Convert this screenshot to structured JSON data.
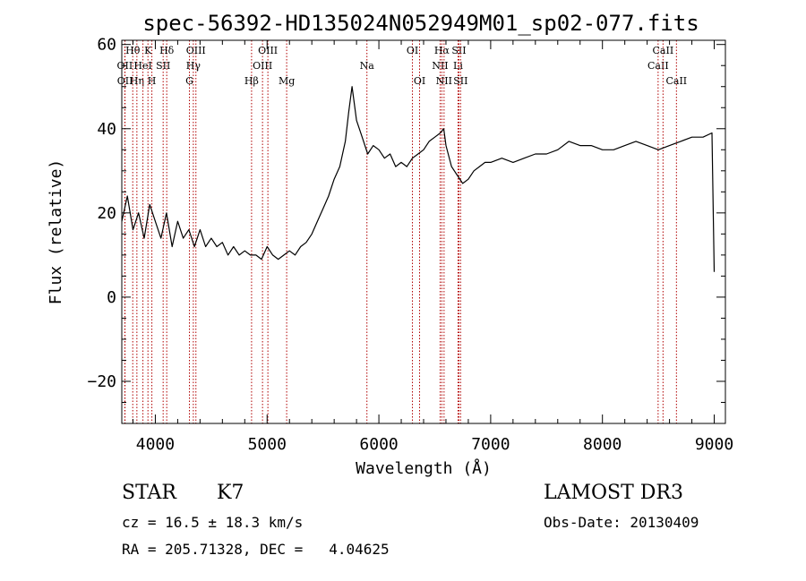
{
  "chart_data": {
    "type": "line",
    "title": "spec-56392-HD135024N052949M01_sp02-077.fits",
    "xlabel": "Wavelength (Å)",
    "ylabel": "Flux (relative)",
    "xlim": [
      3700,
      9100
    ],
    "ylim": [
      -30,
      61
    ],
    "xticks": [
      4000,
      5000,
      6000,
      7000,
      8000,
      9000
    ],
    "yticks": [
      -20,
      0,
      20,
      40,
      60
    ],
    "grid": false,
    "series": [
      {
        "color": "#000000",
        "x": [
          3700,
          3750,
          3800,
          3850,
          3900,
          3950,
          4000,
          4050,
          4100,
          4150,
          4200,
          4250,
          4300,
          4350,
          4400,
          4450,
          4500,
          4550,
          4600,
          4650,
          4700,
          4750,
          4800,
          4850,
          4900,
          4950,
          5000,
          5050,
          5100,
          5150,
          5200,
          5250,
          5300,
          5350,
          5400,
          5450,
          5500,
          5550,
          5600,
          5650,
          5700,
          5730,
          5760,
          5780,
          5800,
          5850,
          5900,
          5950,
          6000,
          6050,
          6100,
          6150,
          6200,
          6250,
          6300,
          6350,
          6400,
          6450,
          6500,
          6550,
          6580,
          6600,
          6650,
          6700,
          6750,
          6800,
          6850,
          6900,
          6950,
          7000,
          7100,
          7200,
          7300,
          7400,
          7500,
          7600,
          7700,
          7800,
          7900,
          8000,
          8100,
          8200,
          8300,
          8400,
          8500,
          8600,
          8700,
          8800,
          8900,
          8980,
          9000
        ],
        "y": [
          18,
          24,
          16,
          20,
          14,
          22,
          18,
          14,
          20,
          12,
          18,
          14,
          16,
          12,
          16,
          12,
          14,
          12,
          13,
          10,
          12,
          10,
          11,
          10,
          10,
          9,
          12,
          10,
          9,
          10,
          11,
          10,
          12,
          13,
          15,
          18,
          21,
          24,
          28,
          31,
          37,
          44,
          50,
          46,
          42,
          38,
          34,
          36,
          35,
          33,
          34,
          31,
          32,
          31,
          33,
          34,
          35,
          37,
          38,
          39,
          40,
          36,
          31,
          29,
          27,
          28,
          30,
          31,
          32,
          32,
          33,
          32,
          33,
          34,
          34,
          35,
          37,
          36,
          36,
          35,
          35,
          36,
          37,
          36,
          35,
          36,
          37,
          38,
          38,
          39,
          6
        ]
      }
    ],
    "line_markers": [
      {
        "label": "OII",
        "x": 3727,
        "row": 2
      },
      {
        "label": "OII",
        "x": 3729,
        "row": 3
      },
      {
        "label": "Hθ",
        "x": 3798,
        "row": 1
      },
      {
        "label": "Hη",
        "x": 3835,
        "row": 3
      },
      {
        "label": "HeI",
        "x": 3889,
        "row": 2
      },
      {
        "label": "K",
        "x": 3934,
        "row": 1
      },
      {
        "label": "H",
        "x": 3969,
        "row": 3
      },
      {
        "label": "SII",
        "x": 4070,
        "row": 2
      },
      {
        "label": "Hδ",
        "x": 4102,
        "row": 1
      },
      {
        "label": "Hγ",
        "x": 4340,
        "row": 2
      },
      {
        "label": "G",
        "x": 4305,
        "row": 3
      },
      {
        "label": "OIII",
        "x": 4363,
        "row": 1
      },
      {
        "label": "Hβ",
        "x": 4861,
        "row": 3
      },
      {
        "label": "OIII",
        "x": 4959,
        "row": 2
      },
      {
        "label": "OIII",
        "x": 5007,
        "row": 1
      },
      {
        "label": "Mg",
        "x": 5175,
        "row": 3
      },
      {
        "label": "Na",
        "x": 5893,
        "row": 2
      },
      {
        "label": "OI",
        "x": 6300,
        "row": 1
      },
      {
        "label": "OI",
        "x": 6364,
        "row": 3
      },
      {
        "label": "NII",
        "x": 6548,
        "row": 2
      },
      {
        "label": "Hα",
        "x": 6563,
        "row": 1
      },
      {
        "label": "NII",
        "x": 6583,
        "row": 3
      },
      {
        "label": "Li",
        "x": 6708,
        "row": 2
      },
      {
        "label": "SII",
        "x": 6716,
        "row": 1
      },
      {
        "label": "SII",
        "x": 6731,
        "row": 3
      },
      {
        "label": "CaII",
        "x": 8498,
        "row": 2
      },
      {
        "label": "CaII",
        "x": 8542,
        "row": 1
      },
      {
        "label": "CaII",
        "x": 8662,
        "row": 3
      }
    ]
  },
  "info": {
    "class_label": "STAR",
    "subclass": "K7",
    "survey": "LAMOST DR3",
    "redshift": "cz = 16.5 ± 18.3 km/s",
    "obs_date": "Obs-Date: 20130409",
    "coords": "RA = 205.71328, DEC =   4.04625"
  }
}
